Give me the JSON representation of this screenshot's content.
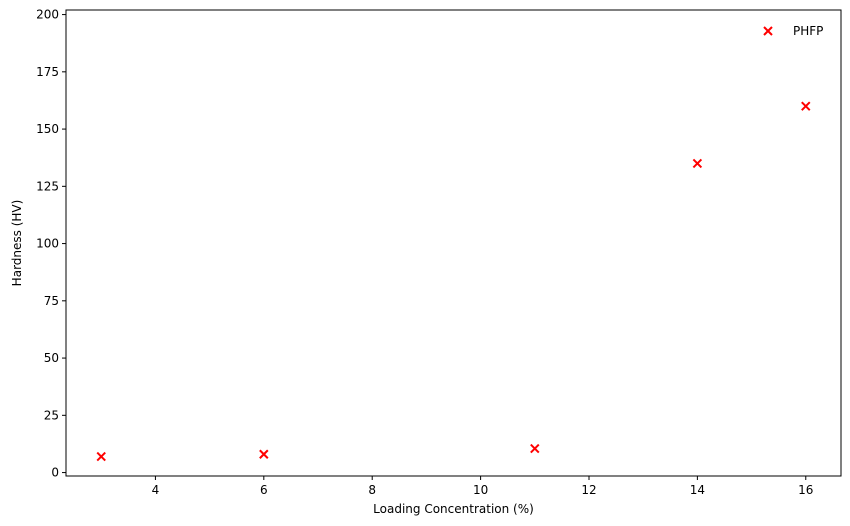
{
  "chart_data": {
    "type": "scatter",
    "title": "",
    "xlabel": "Loading Concentration (%)",
    "ylabel": "Hardness (HV)",
    "xlim": [
      2.35,
      16.65
    ],
    "ylim": [
      -1.5,
      202
    ],
    "x_ticks": [
      4,
      6,
      8,
      10,
      12,
      14,
      16
    ],
    "y_ticks": [
      0,
      25,
      50,
      75,
      100,
      125,
      150,
      175,
      200
    ],
    "grid": false,
    "legend": "top-right",
    "marker": "x",
    "series": [
      {
        "name": "PHFP",
        "color": "#ff0000",
        "x": [
          3,
          6,
          11,
          14,
          16
        ],
        "y": [
          7,
          8,
          10.5,
          135,
          160
        ]
      }
    ]
  }
}
